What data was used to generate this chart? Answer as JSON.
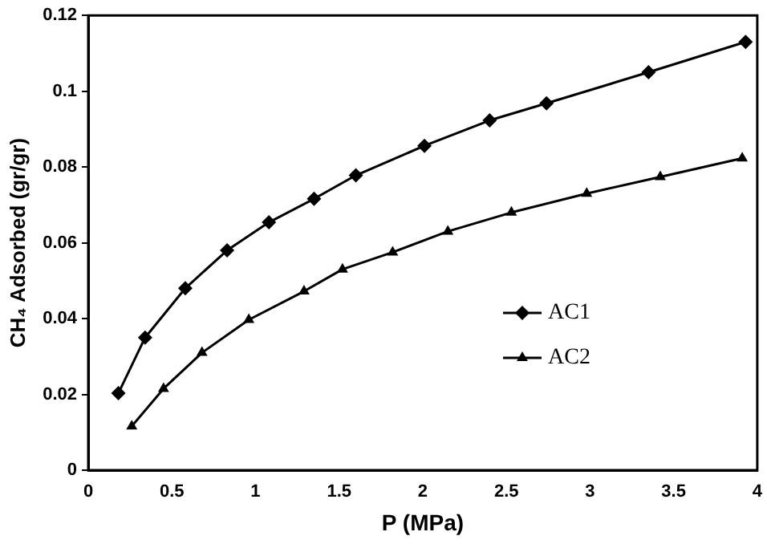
{
  "chart_data": {
    "type": "line",
    "xlabel": "P (MPa)",
    "ylabel": "CH₄ Adsorbed (gr/gr)",
    "xlim": [
      0,
      4
    ],
    "xticks": [
      0,
      0.5,
      1,
      1.5,
      2,
      2.5,
      3,
      3.5,
      4
    ],
    "ylim": [
      0,
      0.12
    ],
    "yticks": [
      0,
      0.02,
      0.04,
      0.06,
      0.08,
      0.1,
      0.12
    ],
    "grid": false,
    "legend": "bottom right",
    "line_style": "solid",
    "series": [
      {
        "name": "AC1",
        "color": "#000000",
        "marker": "diamond",
        "x": [
          0.18,
          0.34,
          0.58,
          0.83,
          1.08,
          1.35,
          1.6,
          2.01,
          2.4,
          2.74,
          3.35,
          3.93
        ],
        "values": [
          0.0203,
          0.035,
          0.048,
          0.058,
          0.0654,
          0.0716,
          0.0778,
          0.0856,
          0.0923,
          0.0968,
          0.105,
          0.113
        ]
      },
      {
        "name": "AC2",
        "color": "#000000",
        "marker": "triangle",
        "x": [
          0.26,
          0.45,
          0.68,
          0.96,
          1.29,
          1.52,
          1.82,
          2.15,
          2.53,
          2.98,
          3.42,
          3.91
        ],
        "values": [
          0.0116,
          0.0215,
          0.031,
          0.0397,
          0.0472,
          0.053,
          0.0575,
          0.063,
          0.068,
          0.073,
          0.0774,
          0.0823
        ]
      }
    ]
  }
}
